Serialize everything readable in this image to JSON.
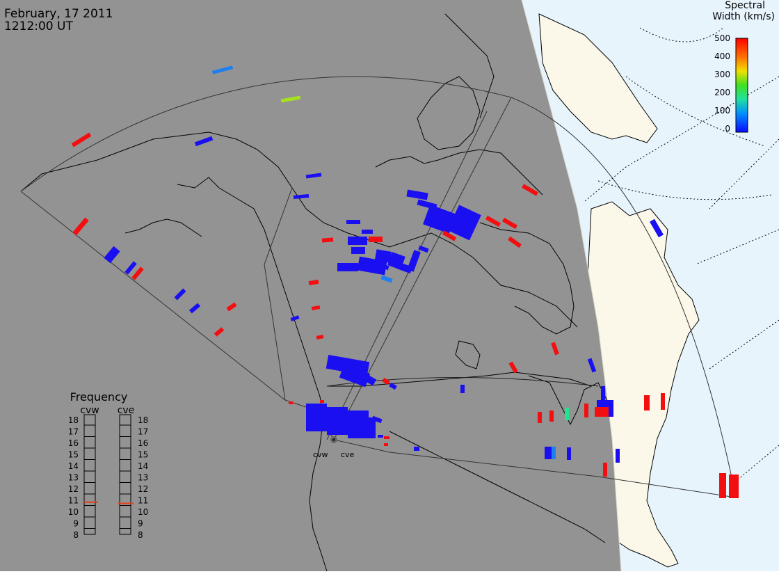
{
  "header": {
    "date": "February, 17 2011",
    "time": "1212:00 UT"
  },
  "colorbar": {
    "title_line1": "Spectral",
    "title_line2": "Width (km/s)",
    "ticks": [
      "500",
      "400",
      "300",
      "200",
      "100",
      "0"
    ],
    "range": [
      0,
      500
    ]
  },
  "frequency": {
    "title": "Frequency",
    "radars": [
      {
        "label": "cvw",
        "value_mhz": 10.8
      },
      {
        "label": "cve",
        "value_mhz": 10.7
      }
    ],
    "ticks": [
      "18",
      "17",
      "16",
      "15",
      "14",
      "13",
      "12",
      "11",
      "10",
      "9",
      "8"
    ],
    "range": [
      8,
      18
    ]
  },
  "stations": {
    "west": "cvw",
    "east": "cve"
  },
  "colors": {
    "night": "#939393",
    "land_day": "#fbf8ea",
    "ocean_day": "#e8f4fc",
    "low_width": "#1a0ff0",
    "high_width": "#f30f0f",
    "mid_width": "#a6e21c",
    "cyan_width": "#25e28c",
    "marker": "#e0401a"
  }
}
